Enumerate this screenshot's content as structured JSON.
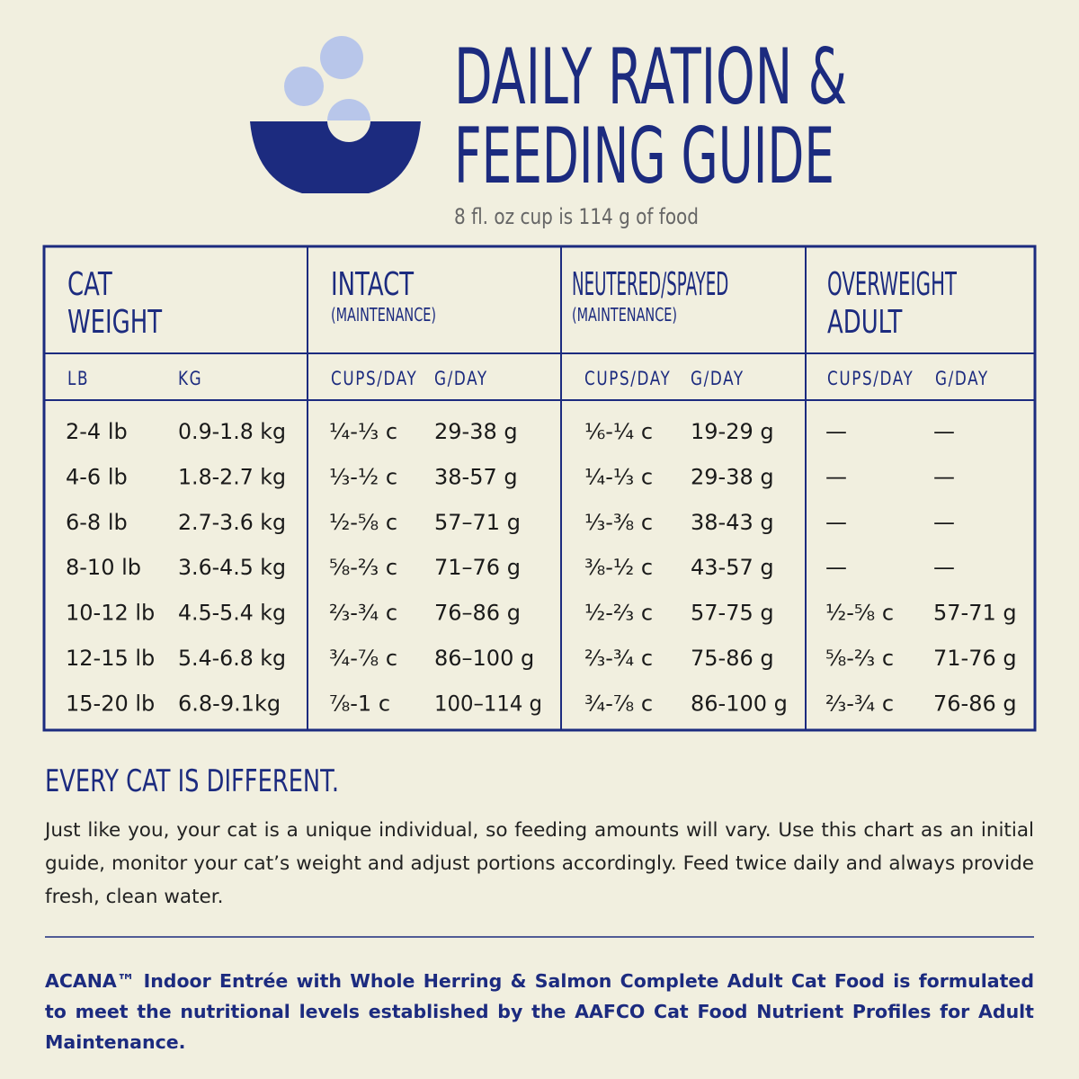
{
  "header": {
    "title_lines": [
      "DAILY RATION &",
      "FEEDING GUIDE"
    ],
    "subtitle": "8 fl. oz cup is 114 g of food"
  },
  "table": {
    "groups": [
      {
        "title_lines": [
          "CAT",
          "WEIGHT"
        ]
      },
      {
        "title_lines": [
          "INTACT"
        ],
        "note": "(MAINTENANCE)"
      },
      {
        "title_lines": [
          "NEUTERED/SPAYED"
        ],
        "note": "(MAINTENANCE)"
      },
      {
        "title_lines": [
          "OVERWEIGHT",
          "ADULT"
        ]
      }
    ],
    "columns": [
      "LB",
      "KG",
      "CUPS/DAY",
      "G/DAY",
      "CUPS/DAY",
      "G/DAY",
      "CUPS/DAY",
      "G/DAY"
    ],
    "rows": [
      [
        "2-4 lb",
        "0.9-1.8 kg",
        "¼-⅓ c",
        "29-38 g",
        "⅙-¼ c",
        "19-29 g",
        "—",
        "—"
      ],
      [
        "4-6 lb",
        "1.8-2.7 kg",
        "⅓-½ c",
        "38-57 g",
        "¼-⅓ c",
        "29-38 g",
        "—",
        "—"
      ],
      [
        "6-8 lb",
        "2.7-3.6 kg",
        "½-⅝ c",
        "57–71 g",
        "⅓-⅜ c",
        "38-43 g",
        "—",
        "—"
      ],
      [
        "8-10 lb",
        "3.6-4.5 kg",
        "⅝-⅔ c",
        "71–76 g",
        "⅜-½ c",
        "43-57 g",
        "—",
        "—"
      ],
      [
        "10-12 lb",
        "4.5-5.4 kg",
        "⅔-¾ c",
        "76–86 g",
        "½-⅔ c",
        "57-75 g",
        "½-⅝ c",
        "57-71 g"
      ],
      [
        "12-15 lb",
        "5.4-6.8 kg",
        "¾-⅞ c",
        "86–100 g",
        "⅔-¾ c",
        "75-86 g",
        "⅝-⅔ c",
        "71-76 g"
      ],
      [
        "15-20 lb",
        "6.8-9.1kg",
        "⅞-1 c",
        "100–114 g",
        "¾-⅞ c",
        "86-100 g",
        "⅔-¾ c",
        "76-86 g"
      ]
    ]
  },
  "section": {
    "heading": "EVERY CAT IS DIFFERENT.",
    "body": "Just like you, your cat is a unique individual, so feeding amounts will vary. Use this chart as an initial guide, monitor your cat’s weight and adjust portions accordingly. Feed twice daily and always provide fresh, clean water."
  },
  "footnote": "ACANA™ Indoor Entrée with Whole Herring & Salmon Complete Adult Cat Food is formulated to meet the nutritional levels established by the AAFCO Cat Food Nutrient Profiles for Adult Maintenance."
}
